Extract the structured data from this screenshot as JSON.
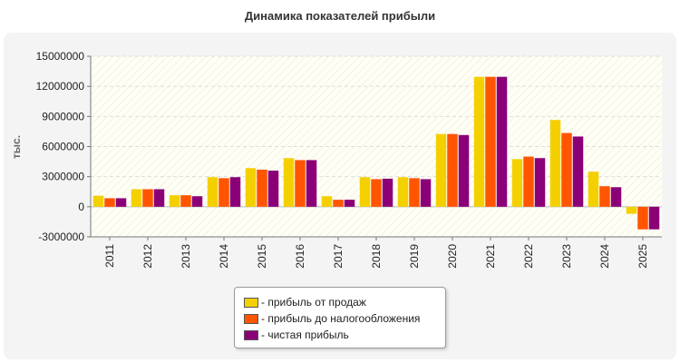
{
  "chart_data": {
    "type": "bar",
    "title": "Динамика показателей прибыли",
    "ylabel": "тыс.",
    "xlabel": "",
    "categories": [
      "2011",
      "2012",
      "2013",
      "2014",
      "2015",
      "2016",
      "2017",
      "2018",
      "2019",
      "2020",
      "2021",
      "2022",
      "2023",
      "2024",
      "2025"
    ],
    "ylim": [
      -3000000,
      15000000
    ],
    "yticks": [
      "15000000",
      "12000000",
      "9000000",
      "6000000",
      "3000000",
      "0",
      "-3000000"
    ],
    "grid": true,
    "legend_position": "bottom",
    "series": [
      {
        "name": "- прибыль от продаж",
        "color": "#f5d000",
        "values": [
          1100000,
          1750000,
          1150000,
          2950000,
          3850000,
          4850000,
          1050000,
          2950000,
          2950000,
          7250000,
          12950000,
          4750000,
          8650000,
          3500000,
          -700000
        ]
      },
      {
        "name": "- прибыль до налогообложения",
        "color": "#ff5500",
        "values": [
          850000,
          1750000,
          1150000,
          2850000,
          3700000,
          4650000,
          700000,
          2750000,
          2850000,
          7250000,
          12950000,
          5000000,
          7350000,
          2050000,
          -2250000
        ]
      },
      {
        "name": "- чистая прибыль",
        "color": "#8b0077",
        "values": [
          850000,
          1750000,
          1050000,
          2950000,
          3600000,
          4650000,
          700000,
          2800000,
          2750000,
          7150000,
          12950000,
          4850000,
          7000000,
          1950000,
          -2250000
        ]
      }
    ]
  }
}
